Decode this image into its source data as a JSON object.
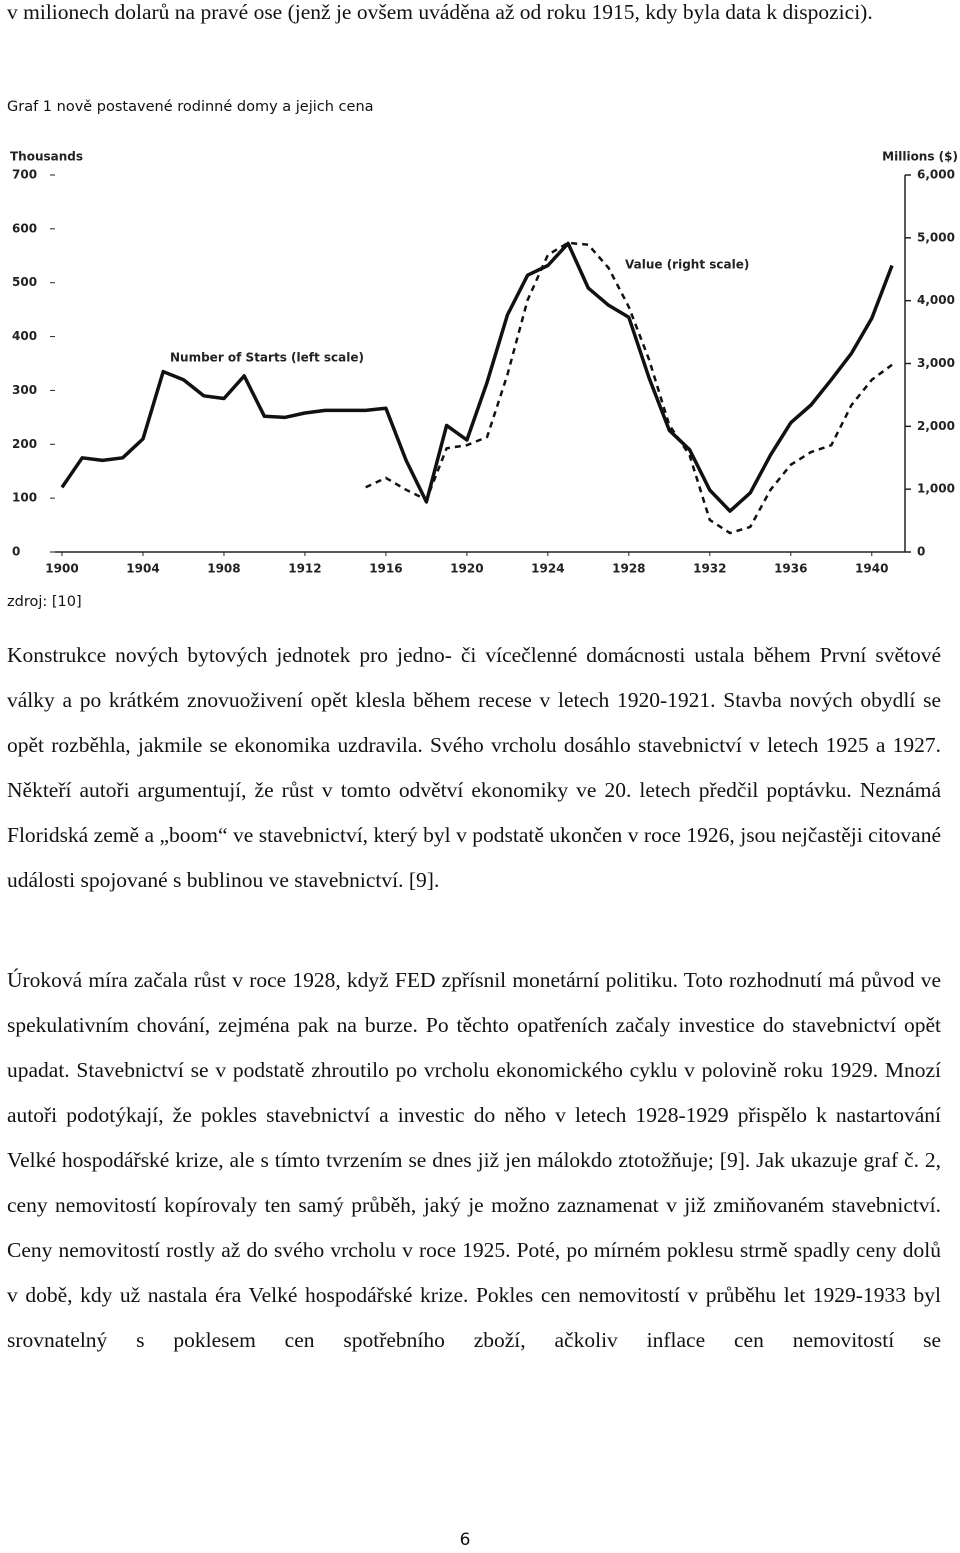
{
  "top_text": "v milionech dolarů na pravé ose (jenž je ovšem uváděna až od roku 1915, kdy byla data k dispozici).",
  "caption": "Graf 1 nově postavené rodinné domy a jejich cena",
  "chart_data": {
    "type": "line",
    "ylabel": "Thousands",
    "y2label": "Millions ($)",
    "x": [
      1900,
      1901,
      1902,
      1903,
      1904,
      1905,
      1906,
      1907,
      1908,
      1909,
      1910,
      1911,
      1912,
      1913,
      1914,
      1915,
      1916,
      1917,
      1918,
      1919,
      1920,
      1921,
      1922,
      1923,
      1924,
      1925,
      1926,
      1927,
      1928,
      1929,
      1930,
      1931,
      1932,
      1933,
      1934,
      1935,
      1936,
      1937,
      1938,
      1939,
      1940,
      1941
    ],
    "xlim": [
      1900,
      1941
    ],
    "xticks": [
      1900,
      1904,
      1908,
      1912,
      1916,
      1920,
      1924,
      1928,
      1932,
      1936,
      1940
    ],
    "ylim": [
      0,
      700
    ],
    "yticks": [
      0,
      100,
      200,
      300,
      400,
      500,
      600,
      700
    ],
    "y2lim": [
      0,
      6000
    ],
    "y2ticks": [
      0,
      {
        "value": 1000,
        "label": "1,000"
      },
      {
        "value": 2000,
        "label": "2,000"
      },
      {
        "value": 3000,
        "label": "3,000"
      },
      {
        "value": 4000,
        "label": "4,000"
      },
      {
        "value": 5000,
        "label": "5,000"
      },
      {
        "value": 6000,
        "label": "6,000"
      }
    ],
    "series": [
      {
        "name": "Number of Starts (left scale)",
        "color": "#111111",
        "style": "solid",
        "values": [
          120,
          175,
          170,
          175,
          210,
          335,
          320,
          290,
          285,
          327,
          252,
          250,
          258,
          263,
          263,
          263,
          267,
          170,
          93,
          235,
          208,
          315,
          440,
          514,
          532,
          573,
          490,
          458,
          436,
          323,
          226,
          190,
          115,
          76,
          110,
          180,
          240,
          273,
          320,
          369,
          434,
          532
        ]
      },
      {
        "name": "Value (right scale)",
        "color": "#111111",
        "style": "dashed",
        "axis": "y2",
        "values": [
          null,
          null,
          null,
          null,
          null,
          null,
          null,
          null,
          null,
          null,
          null,
          null,
          null,
          null,
          null,
          1030,
          1180,
          990,
          830,
          1650,
          1700,
          1830,
          2820,
          4010,
          4730,
          4920,
          4890,
          4520,
          3900,
          3060,
          2020,
          1540,
          510,
          300,
          400,
          990,
          1390,
          1590,
          1700,
          2340,
          2740,
          2980
        ]
      }
    ]
  },
  "source": "zdroj: [10]",
  "paragraphs": [
    "Konstrukce nových bytových jednotek pro jedno- či vícečlenné domácnosti ustala během První světové války a po krátkém znovuoživení opět klesla během recese v letech 1920-1921. Stavba nových obydlí se opět rozběhla, jakmile se ekonomika uzdravila. Svého vrcholu dosáhlo stavebnictví v letech 1925 a 1927. Někteří autoři argumentují, že růst v tomto odvětví ekonomiky ve 20. letech předčil poptávku. Neznámá Floridská země a „boom“ ve stavebnictví, který byl v podstatě ukončen v roce 1926, jsou nejčastěji citované události spojované s bublinou ve stavebnictví. [9].",
    "Úroková míra začala růst v roce 1928, když FED zpřísnil monetární politiku. Toto rozhodnutí má původ ve spekulativním chování, zejména pak na burze. Po těchto opatřeních začaly investice do stavebnictví opět upadat. Stavebnictví se v podstatě zhroutilo po vrcholu ekonomického cyklu v polovině roku 1929. Mnozí autoři podotýkají, že pokles stavebnictví a investic do něho v letech 1928-1929 přispělo k nastartování Velké hospodářské krize, ale s tímto tvrzením se dnes již jen málokdo ztotožňuje; [9]. Jak ukazuje graf č. 2, ceny nemovitostí kopírovaly ten samý průběh, jaký je možno zaznamenat v již zmiňovaném stavebnictví. Ceny nemovitostí rostly až do svého vrcholu v roce 1925. Poté, po mírném poklesu strmě spadly ceny dolů v době, kdy už nastala éra Velké hospodářské krize. Pokles cen nemovitostí v průběhu let 1929-1933 byl srovnatelný s poklesem cen spotřebního zboží, ačkoliv inflace cen nemovitostí se"
  ],
  "page_number": "6"
}
